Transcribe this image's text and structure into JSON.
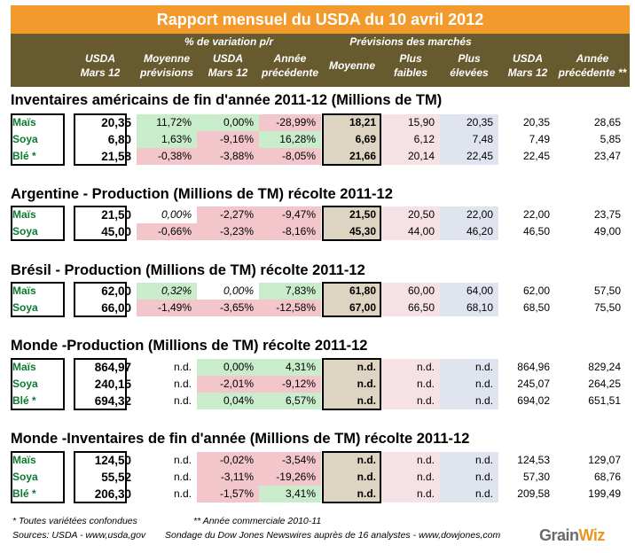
{
  "title": "Rapport mensuel du USDA du 10 avril 2012",
  "header": {
    "usda": [
      "USDA",
      "Mars 12"
    ],
    "variation_group": "% de variation p/r",
    "variation_cols": [
      [
        "Moyenne",
        "prévisions"
      ],
      [
        "USDA",
        "Mars 12"
      ],
      [
        "Année",
        "précédente"
      ]
    ],
    "prev_group": "Prévisions des marchés",
    "prev_cols": [
      [
        "Moyenne"
      ],
      [
        "Plus",
        "faibles"
      ],
      [
        "Plus",
        "élevées"
      ]
    ],
    "usda2": [
      "USDA",
      "Mars 12"
    ],
    "annee": [
      "Année",
      "précédente **"
    ]
  },
  "sections": [
    {
      "title": "Inventaires américains de fin d'année 2011-12 (Millions de TM)",
      "rows": [
        {
          "label": "Maïs",
          "usda": "20,35",
          "moy": "11,72%",
          "vusda": "0,00%",
          "prev": "-28,99%",
          "pmoy": "18,21",
          "pmin": "15,90",
          "pmax": "20,35",
          "cusda": "20,35",
          "cprev": "28,65",
          "moy_c": "g",
          "vusda_c": "g",
          "prev_c": "rd"
        },
        {
          "label": "Soya",
          "usda": "6,80",
          "moy": "1,63%",
          "vusda": "-9,16%",
          "prev": "16,28%",
          "pmoy": "6,69",
          "pmin": "6,12",
          "pmax": "7,48",
          "cusda": "7,49",
          "cprev": "5,85",
          "moy_c": "g",
          "vusda_c": "rd",
          "prev_c": "g"
        },
        {
          "label": "Blé *",
          "usda": "21,58",
          "moy": "-0,38%",
          "vusda": "-3,88%",
          "prev": "-8,05%",
          "pmoy": "21,66",
          "pmin": "20,14",
          "pmax": "22,45",
          "cusda": "22,45",
          "cprev": "23,47",
          "moy_c": "rd",
          "vusda_c": "rd",
          "prev_c": "rd"
        }
      ]
    },
    {
      "title": "Argentine - Production (Millions de TM) récolte 2011-12",
      "rows": [
        {
          "label": "Maïs",
          "usda": "21,50",
          "moy": "0,00%",
          "vusda": "-2,27%",
          "prev": "-9,47%",
          "pmoy": "21,50",
          "pmin": "20,50",
          "pmax": "22,00",
          "cusda": "22,00",
          "cprev": "23,75",
          "moy_c": "",
          "vusda_c": "rd",
          "prev_c": "rd",
          "italic": true
        },
        {
          "label": "Soya",
          "usda": "45,00",
          "moy": "-0,66%",
          "vusda": "-3,23%",
          "prev": "-8,16%",
          "pmoy": "45,30",
          "pmin": "44,00",
          "pmax": "46,20",
          "cusda": "46,50",
          "cprev": "49,00",
          "moy_c": "rd",
          "vusda_c": "rd",
          "prev_c": "rd"
        }
      ]
    },
    {
      "title": "Brésil - Production (Millions de TM) récolte 2011-12",
      "rows": [
        {
          "label": "Maïs",
          "usda": "62,00",
          "moy": "0,32%",
          "vusda": "0,00%",
          "prev": "7,83%",
          "pmoy": "61,80",
          "pmin": "60,00",
          "pmax": "64,00",
          "cusda": "62,00",
          "cprev": "57,50",
          "moy_c": "g",
          "vusda_c": "",
          "prev_c": "g",
          "italic": true
        },
        {
          "label": "Soya",
          "usda": "66,00",
          "moy": "-1,49%",
          "vusda": "-3,65%",
          "prev": "-12,58%",
          "pmoy": "67,00",
          "pmin": "66,50",
          "pmax": "68,10",
          "cusda": "68,50",
          "cprev": "75,50",
          "moy_c": "rd",
          "vusda_c": "rd",
          "prev_c": "rd"
        }
      ]
    },
    {
      "title": "Monde -Production (Millions de TM) récolte 2011-12",
      "rows": [
        {
          "label": "Maïs",
          "usda": "864,97",
          "moy": "n.d.",
          "vusda": "0,00%",
          "prev": "4,31%",
          "pmoy": "n.d.",
          "pmin": "n.d.",
          "pmax": "n.d.",
          "cusda": "864,96",
          "cprev": "829,24",
          "moy_c": "",
          "vusda_c": "g",
          "prev_c": "g"
        },
        {
          "label": "Soya",
          "usda": "240,15",
          "moy": "n.d.",
          "vusda": "-2,01%",
          "prev": "-9,12%",
          "pmoy": "n.d.",
          "pmin": "n.d.",
          "pmax": "n.d.",
          "cusda": "245,07",
          "cprev": "264,25",
          "moy_c": "",
          "vusda_c": "rd",
          "prev_c": "rd"
        },
        {
          "label": "Blé *",
          "usda": "694,32",
          "moy": "n.d.",
          "vusda": "0,04%",
          "prev": "6,57%",
          "pmoy": "n.d.",
          "pmin": "n.d.",
          "pmax": "n.d.",
          "cusda": "694,02",
          "cprev": "651,51",
          "moy_c": "",
          "vusda_c": "g",
          "prev_c": "g"
        }
      ]
    },
    {
      "title": "Monde -Inventaires de fin d'année (Millions de TM) récolte 2011-12",
      "rows": [
        {
          "label": "Maïs",
          "usda": "124,50",
          "moy": "n.d.",
          "vusda": "-0,02%",
          "prev": "-3,54%",
          "pmoy": "n.d.",
          "pmin": "n.d.",
          "pmax": "n.d.",
          "cusda": "124,53",
          "cprev": "129,07",
          "moy_c": "",
          "vusda_c": "rd",
          "prev_c": "rd"
        },
        {
          "label": "Soya",
          "usda": "55,52",
          "moy": "n.d.",
          "vusda": "-3,11%",
          "prev": "-19,26%",
          "pmoy": "n.d.",
          "pmin": "n.d.",
          "pmax": "n.d.",
          "cusda": "57,30",
          "cprev": "68,76",
          "moy_c": "",
          "vusda_c": "rd",
          "prev_c": "rd"
        },
        {
          "label": "Blé *",
          "usda": "206,30",
          "moy": "n.d.",
          "vusda": "-1,57%",
          "prev": "3,41%",
          "pmoy": "n.d.",
          "pmin": "n.d.",
          "pmax": "n.d.",
          "cusda": "209,58",
          "cprev": "199,49",
          "moy_c": "",
          "vusda_c": "rd",
          "prev_c": "g"
        }
      ]
    }
  ],
  "footer": {
    "note1": "* Toutes variétées confondues",
    "note2": "** Année commerciale 2010-11",
    "sources": "Sources: USDA - www,usda,gov",
    "survey": "Sondage du Dow Jones Newswires auprès de 16 analystes - www,dowjones,com",
    "logo_main": "Grain",
    "logo_accent": "Wiz"
  },
  "colors": {
    "title_bg": "#f29b2c",
    "header_bg": "#675a2f",
    "label": "#0a7a2e",
    "green": "#c9eccb",
    "red": "#f3c6cc",
    "tan": "#ddd5c2",
    "pink": "#f6e2e4",
    "blue": "#dfe4ee"
  }
}
